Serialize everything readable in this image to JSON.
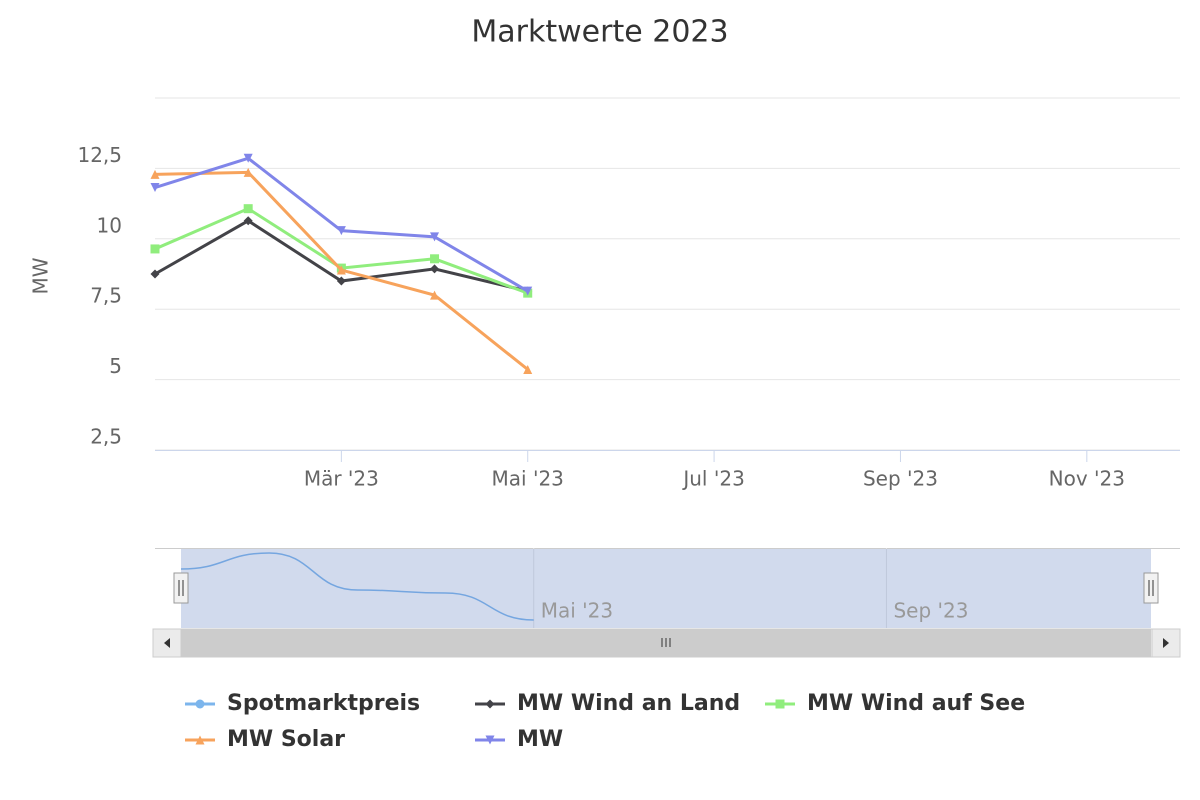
{
  "chart_data": {
    "type": "line",
    "title": "Marktwerte 2023",
    "y_label": "MW",
    "x": [
      "2023-01",
      "2023-02",
      "2023-03",
      "2023-04",
      "2023-05"
    ],
    "xlim": [
      "2023-01",
      "2023-12"
    ],
    "xticks": [
      {
        "value": "2023-03",
        "label": "Mär '23"
      },
      {
        "value": "2023-05",
        "label": "Mai '23"
      },
      {
        "value": "2023-07",
        "label": "Jul '23"
      },
      {
        "value": "2023-09",
        "label": "Sep '23"
      },
      {
        "value": "2023-11",
        "label": "Nov '23"
      }
    ],
    "ylim": [
      2.5,
      15
    ],
    "yticks": [
      {
        "value": 2.5,
        "label": "2,5"
      },
      {
        "value": 5,
        "label": "5"
      },
      {
        "value": 7.5,
        "label": "7,5"
      },
      {
        "value": 10,
        "label": "10"
      },
      {
        "value": 12.5,
        "label": "12,5"
      }
    ],
    "grid": true,
    "legend": "bottom",
    "series": [
      {
        "name": "Spotmarktpreis",
        "color": "#7cb5ec",
        "marker": "circle",
        "main_chart": false,
        "values": [
          5.9,
          7.5,
          3.8,
          3.5,
          0.8
        ]
      },
      {
        "name": "MW Wind an Land",
        "color": "#434348",
        "marker": "diamond",
        "values": [
          8.75,
          10.64,
          8.5,
          8.93,
          8.14
        ]
      },
      {
        "name": "MW Wind auf See",
        "color": "#90ed7d",
        "marker": "square",
        "values": [
          9.64,
          11.07,
          8.96,
          9.29,
          8.07
        ]
      },
      {
        "name": "MW Solar",
        "color": "#f7a35c",
        "marker": "triangle",
        "values": [
          12.29,
          12.36,
          8.89,
          8.0,
          5.36
        ]
      },
      {
        "name": "MW",
        "color": "#8085e9",
        "marker": "triangle-down",
        "values": [
          11.82,
          12.86,
          10.29,
          10.07,
          8.14
        ]
      }
    ],
    "navigator": {
      "series_index": 0,
      "ylim": [
        0,
        8
      ],
      "xticks": [
        {
          "value": "2023-05",
          "label": "Mai '23"
        },
        {
          "value": "2023-09",
          "label": "Sep '23"
        }
      ]
    }
  }
}
